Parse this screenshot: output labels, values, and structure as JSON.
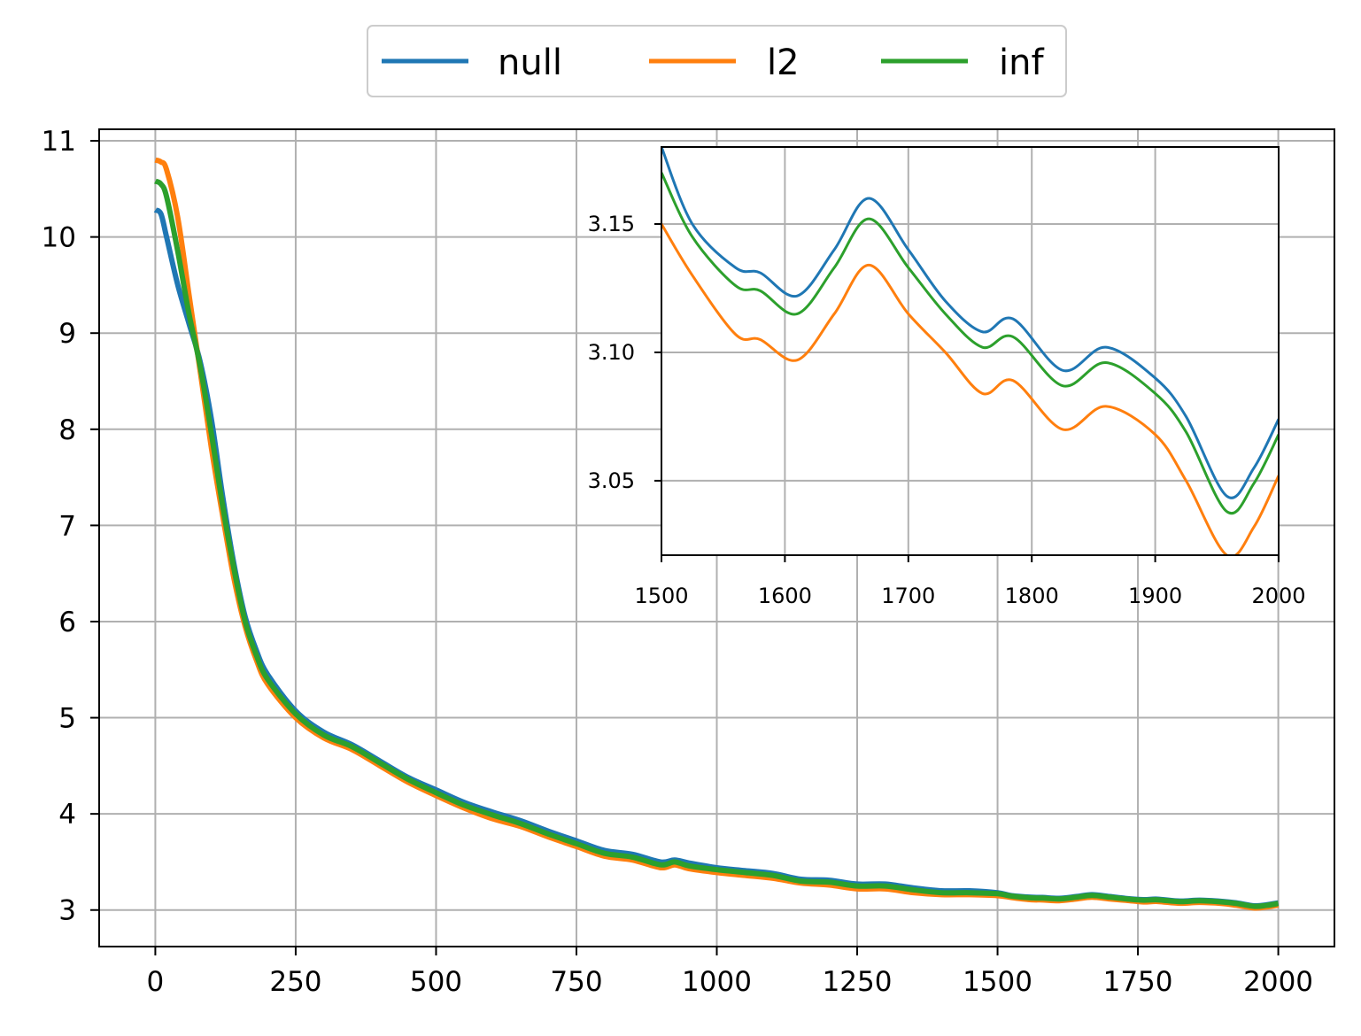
{
  "chart_data": [
    {
      "type": "line",
      "role": "main",
      "xlim": [
        -100,
        2100
      ],
      "ylim": [
        2.62,
        11.12
      ],
      "xticks": [
        0,
        250,
        500,
        750,
        1000,
        1250,
        1500,
        1750,
        2000
      ],
      "xtick_labels": [
        "0",
        "250",
        "500",
        "750",
        "1000",
        "1250",
        "1500",
        "1750",
        "2000"
      ],
      "yticks": [
        3,
        4,
        5,
        6,
        7,
        8,
        9,
        10,
        11
      ],
      "ytick_labels": [
        "3",
        "4",
        "5",
        "6",
        "7",
        "8",
        "9",
        "10",
        "11"
      ],
      "grid": true,
      "legend": {
        "placement": "above",
        "columns": 3
      },
      "series": [
        {
          "name": "null",
          "color": "#1f77b4",
          "points": [
            [
              0,
              10.28
            ],
            [
              10,
              10.24
            ],
            [
              20,
              10.0
            ],
            [
              40,
              9.5
            ],
            [
              60,
              9.1
            ],
            [
              80,
              8.7
            ],
            [
              100,
              8.1
            ],
            [
              120,
              7.3
            ],
            [
              140,
              6.6
            ],
            [
              160,
              6.05
            ],
            [
              180,
              5.7
            ],
            [
              200,
              5.45
            ],
            [
              250,
              5.07
            ],
            [
              300,
              4.85
            ],
            [
              350,
              4.72
            ],
            [
              400,
              4.55
            ],
            [
              450,
              4.38
            ],
            [
              500,
              4.25
            ],
            [
              550,
              4.12
            ],
            [
              600,
              4.02
            ],
            [
              650,
              3.93
            ],
            [
              700,
              3.82
            ],
            [
              750,
              3.72
            ],
            [
              800,
              3.62
            ],
            [
              850,
              3.58
            ],
            [
              900,
              3.5
            ],
            [
              925,
              3.52
            ],
            [
              950,
              3.49
            ],
            [
              1000,
              3.44
            ],
            [
              1050,
              3.41
            ],
            [
              1100,
              3.38
            ],
            [
              1150,
              3.32
            ],
            [
              1200,
              3.31
            ],
            [
              1250,
              3.27
            ],
            [
              1300,
              3.27
            ],
            [
              1350,
              3.23
            ],
            [
              1400,
              3.2
            ],
            [
              1450,
              3.2
            ],
            [
              1500,
              3.18
            ],
            [
              1525,
              3.15
            ],
            [
              1560,
              3.133
            ],
            [
              1580,
              3.131
            ],
            [
              1610,
              3.122
            ],
            [
              1640,
              3.14
            ],
            [
              1668,
              3.16
            ],
            [
              1700,
              3.14
            ],
            [
              1730,
              3.12
            ],
            [
              1760,
              3.108
            ],
            [
              1785,
              3.113
            ],
            [
              1825,
              3.093
            ],
            [
              1860,
              3.102
            ],
            [
              1900,
              3.09
            ],
            [
              1925,
              3.075
            ],
            [
              1958,
              3.044
            ],
            [
              1980,
              3.055
            ],
            [
              2000,
              3.074
            ]
          ]
        },
        {
          "name": "l2",
          "color": "#ff7f0e",
          "points": [
            [
              0,
              10.8
            ],
            [
              10,
              10.78
            ],
            [
              20,
              10.7
            ],
            [
              40,
              10.2
            ],
            [
              60,
              9.4
            ],
            [
              80,
              8.6
            ],
            [
              100,
              7.8
            ],
            [
              120,
              7.1
            ],
            [
              140,
              6.45
            ],
            [
              160,
              5.95
            ],
            [
              180,
              5.6
            ],
            [
              200,
              5.35
            ],
            [
              250,
              5.0
            ],
            [
              300,
              4.79
            ],
            [
              350,
              4.67
            ],
            [
              400,
              4.5
            ],
            [
              450,
              4.33
            ],
            [
              500,
              4.19
            ],
            [
              550,
              4.06
            ],
            [
              600,
              3.95
            ],
            [
              650,
              3.87
            ],
            [
              700,
              3.76
            ],
            [
              750,
              3.66
            ],
            [
              800,
              3.56
            ],
            [
              850,
              3.52
            ],
            [
              900,
              3.44
            ],
            [
              925,
              3.47
            ],
            [
              950,
              3.43
            ],
            [
              1000,
              3.39
            ],
            [
              1050,
              3.36
            ],
            [
              1100,
              3.33
            ],
            [
              1150,
              3.28
            ],
            [
              1200,
              3.26
            ],
            [
              1250,
              3.22
            ],
            [
              1300,
              3.22
            ],
            [
              1350,
              3.18
            ],
            [
              1400,
              3.16
            ],
            [
              1450,
              3.16
            ],
            [
              1500,
              3.15
            ],
            [
              1525,
              3.13
            ],
            [
              1560,
              3.107
            ],
            [
              1580,
              3.105
            ],
            [
              1610,
              3.097
            ],
            [
              1640,
              3.115
            ],
            [
              1668,
              3.134
            ],
            [
              1700,
              3.115
            ],
            [
              1730,
              3.1
            ],
            [
              1760,
              3.084
            ],
            [
              1785,
              3.089
            ],
            [
              1825,
              3.07
            ],
            [
              1860,
              3.079
            ],
            [
              1900,
              3.068
            ],
            [
              1925,
              3.05
            ],
            [
              1958,
              3.021
            ],
            [
              1980,
              3.032
            ],
            [
              2000,
              3.052
            ]
          ]
        },
        {
          "name": "inf",
          "color": "#2ca02c",
          "points": [
            [
              0,
              10.58
            ],
            [
              10,
              10.55
            ],
            [
              20,
              10.42
            ],
            [
              40,
              9.85
            ],
            [
              60,
              9.2
            ],
            [
              80,
              8.65
            ],
            [
              100,
              7.95
            ],
            [
              120,
              7.2
            ],
            [
              140,
              6.55
            ],
            [
              160,
              6.0
            ],
            [
              180,
              5.65
            ],
            [
              200,
              5.4
            ],
            [
              250,
              5.04
            ],
            [
              300,
              4.82
            ],
            [
              350,
              4.7
            ],
            [
              400,
              4.53
            ],
            [
              450,
              4.36
            ],
            [
              500,
              4.22
            ],
            [
              550,
              4.09
            ],
            [
              600,
              3.99
            ],
            [
              650,
              3.9
            ],
            [
              700,
              3.79
            ],
            [
              750,
              3.69
            ],
            [
              800,
              3.59
            ],
            [
              850,
              3.55
            ],
            [
              900,
              3.47
            ],
            [
              925,
              3.5
            ],
            [
              950,
              3.46
            ],
            [
              1000,
              3.42
            ],
            [
              1050,
              3.39
            ],
            [
              1100,
              3.36
            ],
            [
              1150,
              3.3
            ],
            [
              1200,
              3.29
            ],
            [
              1250,
              3.25
            ],
            [
              1300,
              3.25
            ],
            [
              1350,
              3.21
            ],
            [
              1400,
              3.18
            ],
            [
              1450,
              3.18
            ],
            [
              1500,
              3.17
            ],
            [
              1525,
              3.145
            ],
            [
              1560,
              3.126
            ],
            [
              1580,
              3.124
            ],
            [
              1610,
              3.115
            ],
            [
              1640,
              3.133
            ],
            [
              1668,
              3.152
            ],
            [
              1700,
              3.133
            ],
            [
              1730,
              3.115
            ],
            [
              1760,
              3.102
            ],
            [
              1785,
              3.106
            ],
            [
              1825,
              3.087
            ],
            [
              1860,
              3.096
            ],
            [
              1900,
              3.084
            ],
            [
              1925,
              3.069
            ],
            [
              1958,
              3.038
            ],
            [
              1980,
              3.049
            ],
            [
              2000,
              3.068
            ]
          ]
        }
      ]
    },
    {
      "type": "line",
      "role": "inset",
      "xlim": [
        1500,
        2000
      ],
      "ylim": [
        3.021,
        3.18
      ],
      "xticks": [
        1500,
        1600,
        1700,
        1800,
        1900,
        2000
      ],
      "xtick_labels": [
        "1500",
        "1600",
        "1700",
        "1800",
        "1900",
        "2000"
      ],
      "yticks": [
        3.05,
        3.1,
        3.15
      ],
      "ytick_labels": [
        "3.05",
        "3.10",
        "3.15"
      ],
      "grid": true,
      "series_ref": [
        "null",
        "l2",
        "inf"
      ]
    }
  ]
}
